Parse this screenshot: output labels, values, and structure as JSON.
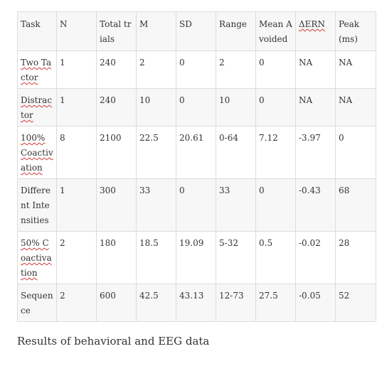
{
  "table": {
    "headers": [
      {
        "text": "Task",
        "spell": false
      },
      {
        "text": "N",
        "spell": false
      },
      {
        "text": "Total trials",
        "spell": false
      },
      {
        "text": "M",
        "spell": false
      },
      {
        "text": "SD",
        "spell": false
      },
      {
        "text": "Range",
        "spell": false
      },
      {
        "text": "Mean Avoided",
        "spell": false
      },
      {
        "text": "ΔERN",
        "spell": true
      },
      {
        "text": "Peak (ms)",
        "spell": false
      }
    ],
    "rows": [
      {
        "task": "Two Tactor",
        "task_spell": true,
        "n": "1",
        "total": "240",
        "m": "2",
        "sd": "0",
        "range": "2",
        "mean_avoided": "0",
        "dern": "NA",
        "peak": "NA"
      },
      {
        "task": "Distractor",
        "task_spell": true,
        "n": "1",
        "total": "240",
        "m": "10",
        "sd": "0",
        "range": "10",
        "mean_avoided": "0",
        "dern": "NA",
        "peak": "NA"
      },
      {
        "task": "100% Coactivation",
        "task_spell": true,
        "n": "8",
        "total": "2100",
        "m": "22.5",
        "sd": "20.61",
        "range": "0-64",
        "mean_avoided": "7.12",
        "dern": "-3.97",
        "peak": "0"
      },
      {
        "task": "Different Intensities",
        "task_spell": false,
        "n": "1",
        "total": "300",
        "m": "33",
        "sd": "0",
        "range": "33",
        "mean_avoided": "0",
        "dern": "-0.43",
        "peak": "68"
      },
      {
        "task": "50% Coactivation",
        "task_spell": true,
        "n": "2",
        "total": "180",
        "m": "18.5",
        "sd": "19.09",
        "range": "5-32",
        "mean_avoided": "0.5",
        "dern": "-0.02",
        "peak": "28"
      },
      {
        "task": "Sequence",
        "task_spell": false,
        "n": "2",
        "total": "600",
        "m": "42.5",
        "sd": "43.13",
        "range": "12-73",
        "mean_avoided": "27.5",
        "dern": "-0.05",
        "peak": "52"
      }
    ]
  },
  "caption": "Results of behavioral and EEG data",
  "colors": {
    "text": "#333333",
    "header_bg": "#f7f7f7",
    "stripe_bg": "#f7f7f7",
    "border": "#dcdcdc",
    "spellcheck_underline": "#d33a3a"
  }
}
